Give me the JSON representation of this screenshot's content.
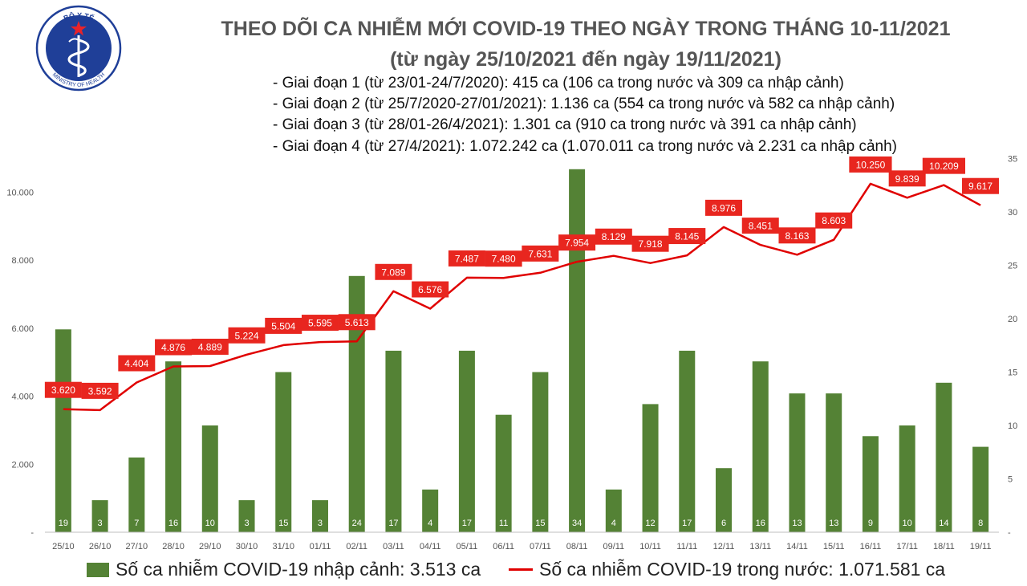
{
  "logo": {
    "top_text": "BỘ Y TẾ",
    "bottom_text": "MINISTRY OF HEALTH",
    "color": "#1f3f98"
  },
  "header": {
    "title": "THEO DÕI CA NHIỄM MỚI COVID-19 THEO NGÀY TRONG THÁNG 10-11/2021",
    "subtitle": "(từ ngày 25/10/2021 đến ngày 19/11/2021)",
    "stages": [
      "- Giai đoạn 1 (từ 23/01-24/7/2020): 415 ca (106 ca trong nước và 309 ca nhập cảnh)",
      "- Giai đoạn 2 (từ 25/7/2020-27/01/2021): 1.136 ca (554 ca trong nước và 582 ca nhập cảnh)",
      "- Giai đoạn 3 (từ 28/01-26/4/2021): 1.301 ca (910 ca trong nước và 391 ca nhập cảnh)",
      "- Giai đoạn 4 (từ 27/4/2021): 1.072.242 ca (1.070.011 ca trong nước và 2.231 ca nhập cảnh)"
    ]
  },
  "chart_data": {
    "type": "bar",
    "categories": [
      "25/10",
      "26/10",
      "27/10",
      "28/10",
      "29/10",
      "30/10",
      "31/10",
      "01/11",
      "02/11",
      "03/11",
      "04/11",
      "05/11",
      "06/11",
      "07/11",
      "08/11",
      "09/11",
      "10/11",
      "11/11",
      "12/11",
      "13/11",
      "14/11",
      "15/11",
      "16/11",
      "17/11",
      "18/11",
      "19/11"
    ],
    "series": [
      {
        "name": "Số ca nhiễm COVID-19 nhập cảnh: 3.513 ca",
        "type": "bar",
        "axis": "right",
        "color": "#548235",
        "values": [
          19,
          3,
          7,
          16,
          10,
          3,
          15,
          3,
          24,
          17,
          4,
          17,
          11,
          15,
          34,
          4,
          12,
          17,
          6,
          16,
          13,
          13,
          9,
          10,
          14,
          8
        ]
      },
      {
        "name": "Số ca nhiễm COVID-19 trong nước: 1.071.581 ca",
        "type": "line",
        "axis": "left",
        "color": "#e00000",
        "values": [
          3620,
          3592,
          4404,
          4876,
          4889,
          5224,
          5504,
          5595,
          5613,
          7089,
          6576,
          7487,
          7480,
          7631,
          7954,
          8129,
          7918,
          8145,
          8976,
          8451,
          8163,
          8603,
          10250,
          9839,
          10209,
          9617
        ],
        "labels": [
          "3.620",
          "3.592",
          "4.404",
          "4.876",
          "4.889",
          "5.224",
          "5.504",
          "5.595",
          "5.613",
          "7.089",
          "6.576",
          "7.487",
          "7.480",
          "7.631",
          "7.954",
          "8.129",
          "7.918",
          "8.145",
          "8.976",
          "8.451",
          "8.163",
          "8.603",
          "10.250",
          "9.839",
          "10.209",
          "9.617"
        ]
      }
    ],
    "left_axis": {
      "ylim": [
        0,
        11000
      ],
      "ticks": [
        0,
        2000,
        4000,
        6000,
        8000,
        10000
      ],
      "tick_labels": [
        "-",
        "2.000",
        "4.000",
        "6.000",
        "8.000",
        "10.000"
      ]
    },
    "right_axis": {
      "ylim": [
        0,
        35
      ],
      "ticks": [
        0,
        5,
        10,
        15,
        20,
        25,
        30,
        35
      ],
      "tick_labels": [
        "-",
        "5",
        "10",
        "15",
        "20",
        "25",
        "30",
        "35"
      ]
    },
    "grid": false,
    "legend_position": "bottom"
  },
  "legend": {
    "bar_label": "Số ca nhiễm COVID-19 nhập cảnh: 3.513 ca",
    "line_label": "Số ca nhiễm COVID-19 trong nước: 1.071.581 ca"
  }
}
